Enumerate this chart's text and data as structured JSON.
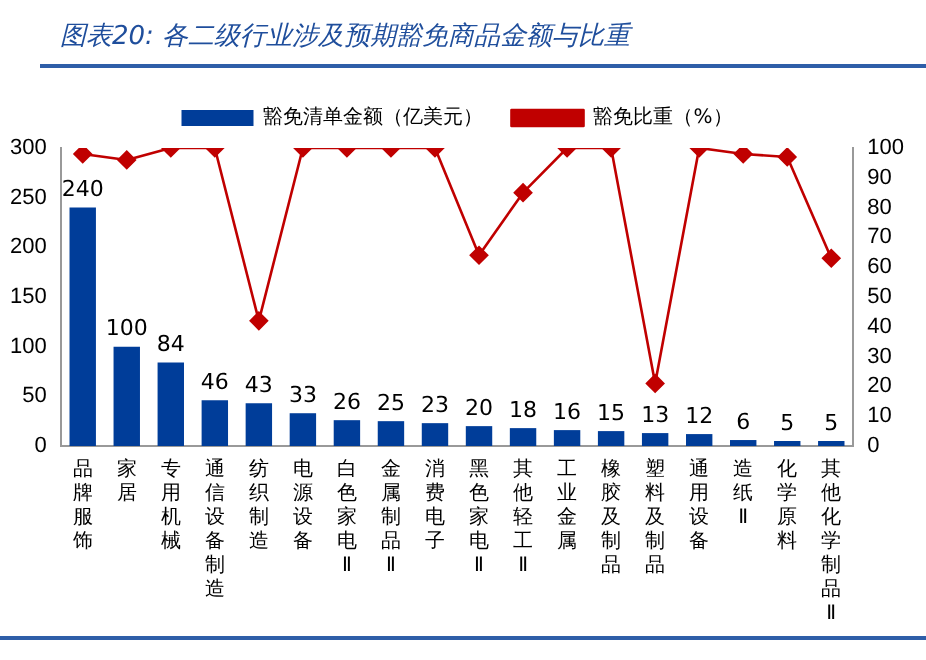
{
  "chart_data": {
    "type": "bar",
    "title": "图表20: 各二级行业涉及预期豁免商品金额与比重",
    "categories": [
      "品牌服饰",
      "家居",
      "专用机械",
      "通信设备制造",
      "纺织制造",
      "电源设备",
      "白色家电Ⅱ",
      "金属制品Ⅱ",
      "消费电子",
      "黑色家电Ⅱ",
      "其他轻工Ⅱ",
      "工业金属",
      "橡胶及制品",
      "塑料及制品",
      "通用设备",
      "造纸Ⅱ",
      "化学原料",
      "其他化学制品Ⅱ"
    ],
    "series": [
      {
        "name": "豁免清单金额（亿美元）",
        "color": "#003d99",
        "values": [
          240,
          100,
          84,
          46,
          43,
          33,
          26,
          25,
          23,
          20,
          18,
          16,
          15,
          13,
          12,
          6,
          5,
          5
        ],
        "value_labels": [
          "240",
          "100",
          "84",
          "46",
          "43",
          "33",
          "26",
          "25",
          "23",
          "20",
          "18",
          "16",
          "15",
          "13",
          "12",
          "6",
          "5",
          "5"
        ]
      },
      {
        "name": "豁免比重（%）",
        "type": "line",
        "axis": "y2",
        "color": "#c00000",
        "marker": "diamond",
        "values": [
          98,
          96,
          100,
          100,
          42,
          100,
          100,
          100,
          100,
          64,
          85,
          100,
          100,
          21,
          100,
          98,
          97,
          63
        ]
      }
    ],
    "ylim": [
      0,
      300
    ],
    "yticks": [
      0,
      50,
      100,
      150,
      200,
      250,
      300
    ],
    "y2lim": [
      0,
      100
    ],
    "y2ticks": [
      0,
      10,
      20,
      30,
      40,
      50,
      60,
      70,
      80,
      90,
      100
    ],
    "grid": false,
    "legend": "top"
  }
}
